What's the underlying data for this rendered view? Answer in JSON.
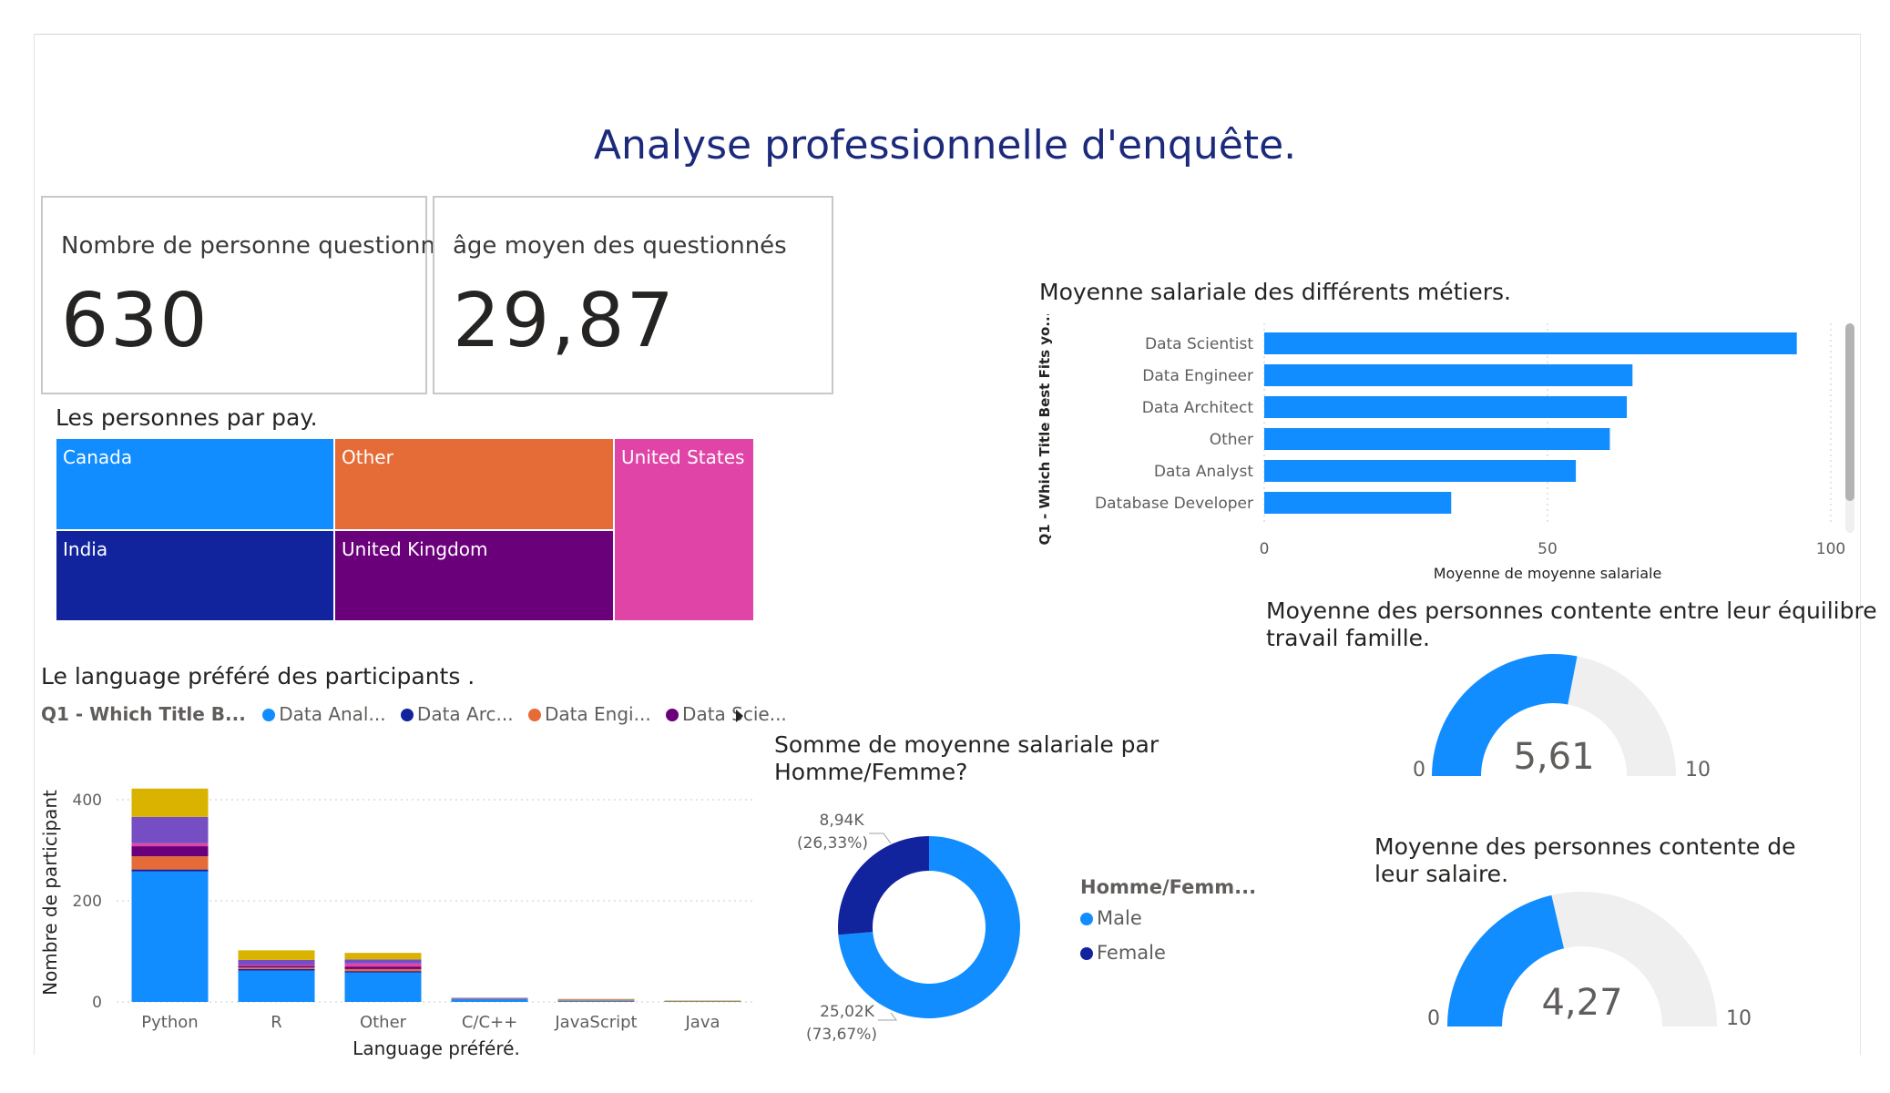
{
  "title": "Analyse professionnelle d'enquête.",
  "cards": [
    {
      "label": "Nombre de personne questionnée",
      "value": "630"
    },
    {
      "label": "âge moyen des questionnés",
      "value": "29,87"
    }
  ],
  "treemap": {
    "title": "Les personnes par pay.",
    "cells": [
      {
        "label": "Canada",
        "color": "#118dff"
      },
      {
        "label": "Other",
        "color": "#e66c37"
      },
      {
        "label": "United States",
        "color": "#e044a7"
      },
      {
        "label": "India",
        "color": "#12239e"
      },
      {
        "label": "United Kingdom",
        "color": "#6b007b"
      }
    ]
  },
  "salary_chart_title": "Moyenne salariale des différents métiers.",
  "language_chart_title": "Le language préféré des participants .",
  "language_legend": {
    "title": "Q1 - Which Title B...",
    "items": [
      {
        "label": "Data Anal...",
        "color": "#118dff"
      },
      {
        "label": "Data Arc...",
        "color": "#12239e"
      },
      {
        "label": "Data Engi...",
        "color": "#e66c37"
      },
      {
        "label": "Data Scie...",
        "color": "#6b007b"
      }
    ]
  },
  "donut_title_line1": "Somme de moyenne salariale par",
  "donut_title_line2": "Homme/Femme?",
  "donut_legend": {
    "title": "Homme/Femm...",
    "items": [
      {
        "label": "Male",
        "color": "#118dff"
      },
      {
        "label": "Female",
        "color": "#12239e"
      }
    ]
  },
  "gauge1": {
    "title_line1": "Moyenne des personnes contente entre leur équilibre",
    "title_line2": "travail famille.",
    "value_label": "5,61",
    "min": "0",
    "max": "10"
  },
  "gauge2": {
    "title_line1": "Moyenne des personnes contente de",
    "title_line2": "leur salaire.",
    "value_label": "4,27",
    "min": "0",
    "max": "10"
  },
  "chart_data": [
    {
      "type": "bar",
      "orientation": "horizontal",
      "title": "Moyenne salariale des différents métiers.",
      "ylabel": "Q1 - Which Title Best Fits yo...",
      "xlabel": "Moyenne de moyenne salariale",
      "categories": [
        "Data Scientist",
        "Data Engineer",
        "Data Architect",
        "Other",
        "Data Analyst",
        "Database Developer"
      ],
      "values": [
        94,
        65,
        64,
        61,
        55,
        33
      ],
      "xlim": [
        0,
        100
      ],
      "xticks": [
        "0",
        "50",
        "100"
      ],
      "color": "#118dff"
    },
    {
      "type": "bar",
      "stacked": true,
      "title": "Le language préféré des participants .",
      "xlabel": "Language préféré.",
      "ylabel": "Nombre de participant",
      "categories": [
        "Python",
        "R",
        "Other",
        "C/C++",
        "JavaScript",
        "Java"
      ],
      "ylim": [
        0,
        420
      ],
      "yticks": [
        "0",
        "200",
        "400"
      ],
      "series": [
        {
          "name": "Data Anal...",
          "color": "#118dff",
          "values": [
            258,
            62,
            58,
            5,
            2,
            1
          ]
        },
        {
          "name": "Data Arc...",
          "color": "#12239e",
          "values": [
            4,
            3,
            3,
            1,
            0,
            0
          ]
        },
        {
          "name": "Data Engi...",
          "color": "#e66c37",
          "values": [
            26,
            3,
            4,
            1,
            2,
            1
          ]
        },
        {
          "name": "Data Scie...",
          "color": "#6b007b",
          "values": [
            20,
            3,
            5,
            0,
            0,
            0
          ]
        },
        {
          "color": "#e044a7",
          "values": [
            6,
            2,
            6,
            0,
            0,
            0
          ]
        },
        {
          "color": "#744ec2",
          "values": [
            52,
            10,
            8,
            1,
            1,
            0
          ]
        },
        {
          "color": "#d9b300",
          "values": [
            56,
            19,
            13,
            0,
            1,
            1
          ]
        }
      ]
    },
    {
      "type": "pie",
      "donut": true,
      "title": "Somme de moyenne salariale par Homme/Femme?",
      "slices": [
        {
          "name": "Male",
          "value": 25.02,
          "label": "25,02K",
          "pct": "(73,67%)",
          "color": "#118dff"
        },
        {
          "name": "Female",
          "value": 8.94,
          "label": "8,94K",
          "pct": "(26,33%)",
          "color": "#12239e"
        }
      ]
    },
    {
      "type": "gauge",
      "title": "Moyenne des personnes contente entre leur équilibre travail famille.",
      "value": 5.61,
      "min": 0,
      "max": 10,
      "color": "#118dff",
      "track": "#efefef"
    },
    {
      "type": "gauge",
      "title": "Moyenne des personnes contente de leur salaire.",
      "value": 4.27,
      "min": 0,
      "max": 10,
      "color": "#118dff",
      "track": "#efefef"
    }
  ]
}
